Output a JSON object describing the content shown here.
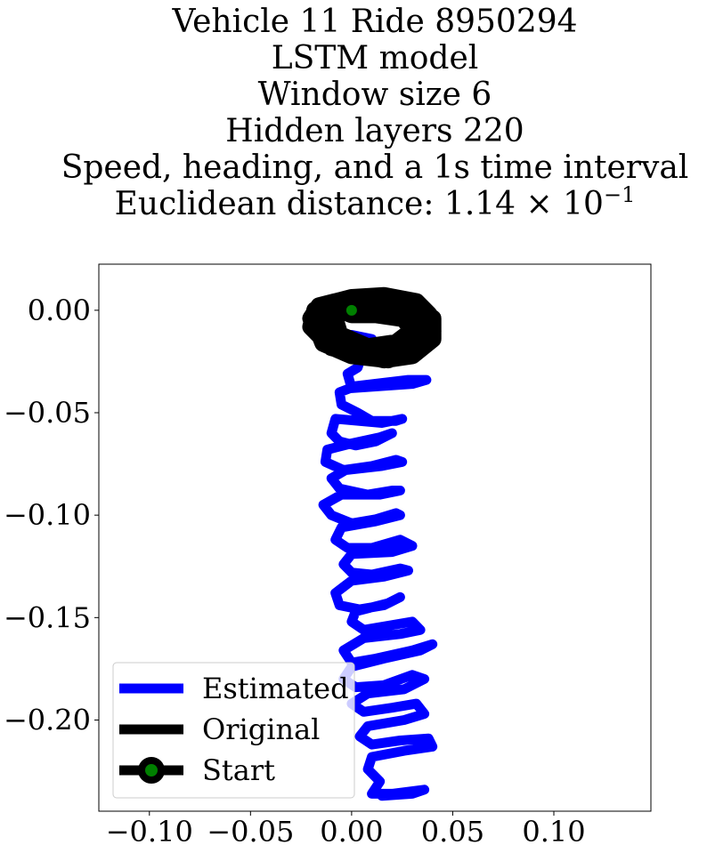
{
  "chart_data": {
    "type": "line",
    "title_lines": [
      "Vehicle 11 Ride 8950294",
      "LSTM model",
      "Window size 6",
      "Hidden layers 220",
      "Speed, heading, and a 1s time interval"
    ],
    "metric": {
      "label": "Euclidean distance: 1.14 × 10",
      "exponent": "−1"
    },
    "xlabel": "",
    "ylabel": "",
    "xlim": [
      -0.125,
      0.148
    ],
    "ylim": [
      -0.2445,
      0.0225
    ],
    "xticks": [
      {
        "value": -0.1,
        "label": "−0.10"
      },
      {
        "value": -0.05,
        "label": "−0.05"
      },
      {
        "value": 0.0,
        "label": "0.00"
      },
      {
        "value": 0.05,
        "label": "0.05"
      },
      {
        "value": 0.1,
        "label": "0.10"
      }
    ],
    "yticks": [
      {
        "value": 0.0,
        "label": "0.00"
      },
      {
        "value": -0.05,
        "label": "−0.05"
      },
      {
        "value": -0.1,
        "label": "−0.10"
      },
      {
        "value": -0.15,
        "label": "−0.15"
      },
      {
        "value": -0.2,
        "label": "−0.20"
      }
    ],
    "grid": false,
    "legend_position": "lower-left",
    "series": [
      {
        "name": "Estimated",
        "color": "#0000ff",
        "points": [
          [
            0.0,
            -0.012
          ],
          [
            0.01,
            -0.014
          ],
          [
            0.012,
            -0.02
          ],
          [
            0.005,
            -0.022
          ],
          [
            0.003,
            -0.028
          ],
          [
            -0.002,
            -0.031
          ],
          [
            0.0,
            -0.038
          ],
          [
            0.03,
            -0.036
          ],
          [
            0.037,
            -0.034
          ],
          [
            0.028,
            -0.034
          ],
          [
            0.002,
            -0.037
          ],
          [
            -0.006,
            -0.04
          ],
          [
            -0.005,
            -0.046
          ],
          [
            0.003,
            -0.05
          ],
          [
            0.01,
            -0.054
          ],
          [
            0.022,
            -0.054
          ],
          [
            0.025,
            -0.053
          ],
          [
            0.015,
            -0.055
          ],
          [
            -0.008,
            -0.053
          ],
          [
            -0.01,
            -0.06
          ],
          [
            -0.006,
            -0.064
          ],
          [
            0.002,
            -0.066
          ],
          [
            0.012,
            -0.064
          ],
          [
            0.02,
            -0.06
          ],
          [
            0.014,
            -0.062
          ],
          [
            0.0,
            -0.065
          ],
          [
            -0.012,
            -0.068
          ],
          [
            -0.013,
            -0.074
          ],
          [
            -0.004,
            -0.078
          ],
          [
            0.01,
            -0.076
          ],
          [
            0.022,
            -0.073
          ],
          [
            0.025,
            -0.074
          ],
          [
            0.015,
            -0.076
          ],
          [
            -0.003,
            -0.078
          ],
          [
            -0.01,
            -0.082
          ],
          [
            -0.006,
            -0.087
          ],
          [
            0.008,
            -0.09
          ],
          [
            0.02,
            -0.088
          ],
          [
            0.024,
            -0.088
          ],
          [
            0.014,
            -0.09
          ],
          [
            -0.005,
            -0.09
          ],
          [
            -0.014,
            -0.095
          ],
          [
            -0.01,
            -0.1
          ],
          [
            0.0,
            -0.104
          ],
          [
            0.012,
            -0.102
          ],
          [
            0.022,
            -0.099
          ],
          [
            0.024,
            -0.1
          ],
          [
            0.012,
            -0.103
          ],
          [
            -0.005,
            -0.106
          ],
          [
            -0.008,
            -0.112
          ],
          [
            -0.002,
            -0.116
          ],
          [
            0.01,
            -0.116
          ],
          [
            0.024,
            -0.112
          ],
          [
            0.03,
            -0.115
          ],
          [
            0.02,
            -0.118
          ],
          [
            0.0,
            -0.119
          ],
          [
            -0.004,
            -0.124
          ],
          [
            0.0,
            -0.128
          ],
          [
            0.01,
            -0.129
          ],
          [
            0.024,
            -0.126
          ],
          [
            0.028,
            -0.127
          ],
          [
            0.016,
            -0.13
          ],
          [
            0.0,
            -0.132
          ],
          [
            -0.008,
            -0.138
          ],
          [
            -0.006,
            -0.144
          ],
          [
            0.004,
            -0.146
          ],
          [
            0.016,
            -0.144
          ],
          [
            0.024,
            -0.14
          ],
          [
            0.018,
            -0.143
          ],
          [
            0.002,
            -0.147
          ],
          [
            0.0,
            -0.152
          ],
          [
            0.006,
            -0.156
          ],
          [
            0.018,
            -0.154
          ],
          [
            0.03,
            -0.152
          ],
          [
            0.034,
            -0.156
          ],
          [
            0.024,
            -0.158
          ],
          [
            0.006,
            -0.16
          ],
          [
            -0.004,
            -0.166
          ],
          [
            0.0,
            -0.172
          ],
          [
            0.012,
            -0.17
          ],
          [
            0.03,
            -0.166
          ],
          [
            0.04,
            -0.163
          ],
          [
            0.034,
            -0.166
          ],
          [
            0.016,
            -0.17
          ],
          [
            0.0,
            -0.174
          ],
          [
            -0.004,
            -0.18
          ],
          [
            0.002,
            -0.184
          ],
          [
            0.016,
            -0.183
          ],
          [
            0.03,
            -0.178
          ],
          [
            0.036,
            -0.18
          ],
          [
            0.026,
            -0.185
          ],
          [
            0.008,
            -0.187
          ],
          [
            0.0,
            -0.192
          ],
          [
            0.006,
            -0.196
          ],
          [
            0.02,
            -0.194
          ],
          [
            0.032,
            -0.192
          ],
          [
            0.036,
            -0.197
          ],
          [
            0.026,
            -0.2
          ],
          [
            0.008,
            -0.203
          ],
          [
            0.004,
            -0.208
          ],
          [
            0.01,
            -0.212
          ],
          [
            0.024,
            -0.21
          ],
          [
            0.038,
            -0.209
          ],
          [
            0.04,
            -0.213
          ],
          [
            0.026,
            -0.215
          ],
          [
            0.01,
            -0.218
          ],
          [
            0.008,
            -0.224
          ],
          [
            0.014,
            -0.23
          ],
          [
            0.01,
            -0.236
          ],
          [
            0.02,
            -0.236
          ],
          [
            0.036,
            -0.234
          ],
          [
            0.03,
            -0.236
          ],
          [
            0.015,
            -0.237
          ]
        ]
      },
      {
        "name": "Original",
        "color": "#000000",
        "points": [
          [
            0.0,
            0.0
          ],
          [
            -0.008,
            0.004
          ],
          [
            -0.016,
            0.002
          ],
          [
            -0.02,
            -0.004
          ],
          [
            -0.016,
            -0.012
          ],
          [
            -0.005,
            -0.018
          ],
          [
            0.01,
            -0.02
          ],
          [
            0.026,
            -0.017
          ],
          [
            0.036,
            -0.01
          ],
          [
            0.038,
            -0.002
          ],
          [
            0.032,
            0.004
          ],
          [
            0.016,
            0.007
          ],
          [
            0.0,
            0.006
          ],
          [
            -0.012,
            0.003
          ],
          [
            -0.018,
            -0.004
          ],
          [
            -0.014,
            -0.014
          ],
          [
            -0.002,
            -0.02
          ],
          [
            0.016,
            -0.024
          ],
          [
            0.03,
            -0.022
          ],
          [
            0.04,
            -0.014
          ],
          [
            0.04,
            -0.004
          ],
          [
            0.03,
            0.003
          ],
          [
            0.01,
            0.006
          ],
          [
            -0.006,
            0.004
          ],
          [
            -0.016,
            -0.002
          ],
          [
            -0.018,
            -0.01
          ],
          [
            -0.01,
            -0.018
          ],
          [
            0.006,
            -0.022
          ],
          [
            0.024,
            -0.021
          ],
          [
            0.036,
            -0.014
          ],
          [
            0.036,
            -0.004
          ],
          [
            0.024,
            0.002
          ],
          [
            0.006,
            0.004
          ],
          [
            -0.01,
            0.002
          ],
          [
            -0.018,
            -0.006
          ],
          [
            -0.014,
            -0.016
          ],
          [
            0.0,
            -0.022
          ],
          [
            0.018,
            -0.024
          ],
          [
            0.032,
            -0.02
          ],
          [
            0.04,
            -0.01
          ],
          [
            0.036,
            0.0
          ],
          [
            0.02,
            0.006
          ],
          [
            0.004,
            0.005
          ],
          [
            -0.01,
            0.001
          ],
          [
            -0.006,
            -0.012
          ],
          [
            0.008,
            -0.018
          ],
          [
            0.022,
            -0.016
          ],
          [
            0.03,
            -0.01
          ],
          [
            0.026,
            -0.004
          ],
          [
            0.012,
            -0.002
          ],
          [
            0.0,
            -0.002
          ],
          [
            -0.01,
            0.002
          ],
          [
            -0.018,
            0.0
          ],
          [
            -0.02,
            -0.008
          ],
          [
            -0.012,
            -0.016
          ],
          [
            0.004,
            -0.02
          ],
          [
            0.02,
            -0.018
          ],
          [
            0.034,
            -0.012
          ],
          [
            0.038,
            -0.004
          ],
          [
            0.03,
            0.002
          ],
          [
            0.014,
            0.004
          ],
          [
            0.0,
            0.0
          ]
        ]
      }
    ],
    "start_point": {
      "name": "Start",
      "x": 0.0,
      "y": 0.0,
      "marker_color": "#008000",
      "edge_color": "#000000"
    }
  }
}
